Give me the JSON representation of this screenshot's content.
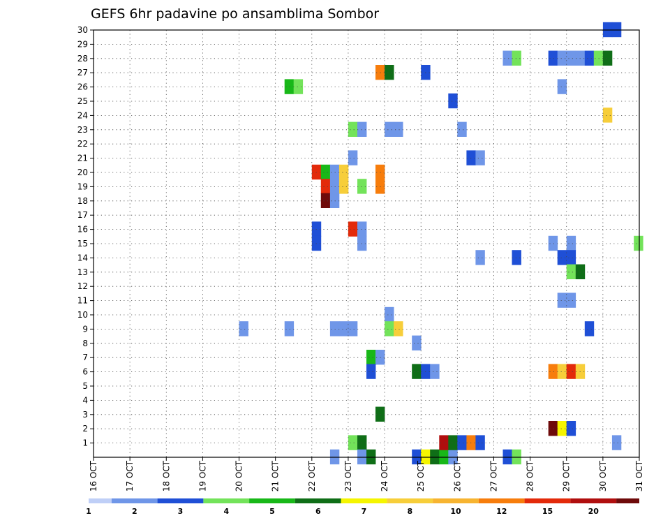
{
  "chart_data": {
    "type": "heatmap",
    "title": "GEFS 6hr padavine po ansamblima Sombor",
    "xlabel": "",
    "ylabel": "",
    "x_tick_labels": [
      "16 OCT",
      "17 OCT",
      "18 OCT",
      "19 OCT",
      "20 OCT",
      "21 OCT",
      "22 OCT",
      "23 OCT",
      "24 OCT",
      "25 OCT",
      "26 OCT",
      "27 OCT",
      "28 OCT",
      "29 OCT",
      "30 OCT",
      "31 OCT"
    ],
    "xlim_days": [
      16,
      31
    ],
    "y_tick_labels": [
      "1",
      "2",
      "3",
      "4",
      "5",
      "6",
      "7",
      "8",
      "9",
      "10",
      "11",
      "12",
      "13",
      "14",
      "15",
      "16",
      "17",
      "18",
      "19",
      "20",
      "21",
      "22",
      "23",
      "24",
      "25",
      "26",
      "27",
      "28",
      "29",
      "30"
    ],
    "ylim": [
      0,
      30
    ],
    "grid": true,
    "colorbar": {
      "labels": [
        "1",
        "2",
        "3",
        "4",
        "5",
        "6",
        "7",
        "8",
        "10",
        "12",
        "15",
        "20"
      ],
      "colors": [
        "#bfcff7",
        "#6f96e8",
        "#1f4fd6",
        "#73e35a",
        "#18b818",
        "#0f6e17",
        "#f5f500",
        "#f7ce3a",
        "#f7b431",
        "#f77d0c",
        "#e32a0a",
        "#b00e0e",
        "#6e0a0a"
      ]
    },
    "cells": [
      {
        "x": 20.0,
        "y": 9,
        "c": 1
      },
      {
        "x": 21.25,
        "y": 9,
        "c": 1
      },
      {
        "x": 21.25,
        "y": 26,
        "c": 4
      },
      {
        "x": 21.5,
        "y": 26,
        "c": 3
      },
      {
        "x": 22.0,
        "y": 20,
        "c": 10
      },
      {
        "x": 22.25,
        "y": 20,
        "c": 4
      },
      {
        "x": 22.5,
        "y": 20,
        "c": 1
      },
      {
        "x": 22.75,
        "y": 20,
        "c": 7
      },
      {
        "x": 22.25,
        "y": 19,
        "c": 10
      },
      {
        "x": 22.5,
        "y": 19,
        "c": 1
      },
      {
        "x": 22.75,
        "y": 19,
        "c": 7
      },
      {
        "x": 22.25,
        "y": 18,
        "c": 12
      },
      {
        "x": 22.5,
        "y": 18,
        "c": 1
      },
      {
        "x": 22.0,
        "y": 16,
        "c": 2
      },
      {
        "x": 22.0,
        "y": 15,
        "c": 2
      },
      {
        "x": 22.5,
        "y": 9,
        "c": 1
      },
      {
        "x": 22.75,
        "y": 9,
        "c": 1
      },
      {
        "x": 23.0,
        "y": 9,
        "c": 1
      },
      {
        "x": 22.5,
        "y": 0,
        "c": 1
      },
      {
        "x": 23.0,
        "y": 23,
        "c": 3
      },
      {
        "x": 23.25,
        "y": 23,
        "c": 1
      },
      {
        "x": 23.0,
        "y": 21,
        "c": 1
      },
      {
        "x": 23.25,
        "y": 19,
        "c": 3
      },
      {
        "x": 23.0,
        "y": 16,
        "c": 10
      },
      {
        "x": 23.25,
        "y": 16,
        "c": 1
      },
      {
        "x": 23.25,
        "y": 15,
        "c": 1
      },
      {
        "x": 23.5,
        "y": 7,
        "c": 4
      },
      {
        "x": 23.75,
        "y": 7,
        "c": 1
      },
      {
        "x": 23.5,
        "y": 6,
        "c": 2
      },
      {
        "x": 23.75,
        "y": 3,
        "c": 5
      },
      {
        "x": 23.0,
        "y": 1,
        "c": 3
      },
      {
        "x": 23.25,
        "y": 1,
        "c": 5
      },
      {
        "x": 23.25,
        "y": 0,
        "c": 1
      },
      {
        "x": 23.5,
        "y": 0,
        "c": 5
      },
      {
        "x": 23.75,
        "y": 27,
        "c": 9
      },
      {
        "x": 24.0,
        "y": 27,
        "c": 5
      },
      {
        "x": 24.0,
        "y": 23,
        "c": 1
      },
      {
        "x": 24.25,
        "y": 23,
        "c": 1
      },
      {
        "x": 23.75,
        "y": 20,
        "c": 9
      },
      {
        "x": 23.75,
        "y": 19,
        "c": 9
      },
      {
        "x": 24.0,
        "y": 10,
        "c": 1
      },
      {
        "x": 24.0,
        "y": 9,
        "c": 3
      },
      {
        "x": 24.25,
        "y": 9,
        "c": 7
      },
      {
        "x": 24.75,
        "y": 0,
        "c": 2
      },
      {
        "x": 24.75,
        "y": 8,
        "c": 1
      },
      {
        "x": 24.75,
        "y": 6,
        "c": 5
      },
      {
        "x": 25.0,
        "y": 6,
        "c": 2
      },
      {
        "x": 25.25,
        "y": 6,
        "c": 1
      },
      {
        "x": 25.0,
        "y": 27,
        "c": 2
      },
      {
        "x": 25.0,
        "y": 0,
        "c": 6
      },
      {
        "x": 25.25,
        "y": 0,
        "c": 5
      },
      {
        "x": 25.5,
        "y": 0,
        "c": 4
      },
      {
        "x": 25.75,
        "y": 0,
        "c": 1
      },
      {
        "x": 25.5,
        "y": 1,
        "c": 11
      },
      {
        "x": 25.75,
        "y": 1,
        "c": 5
      },
      {
        "x": 26.0,
        "y": 1,
        "c": 2
      },
      {
        "x": 26.25,
        "y": 1,
        "c": 9
      },
      {
        "x": 26.5,
        "y": 1,
        "c": 2
      },
      {
        "x": 25.75,
        "y": 25,
        "c": 2
      },
      {
        "x": 26.0,
        "y": 23,
        "c": 1
      },
      {
        "x": 26.25,
        "y": 21,
        "c": 2
      },
      {
        "x": 26.5,
        "y": 21,
        "c": 1
      },
      {
        "x": 26.5,
        "y": 14,
        "c": 1
      },
      {
        "x": 27.25,
        "y": 28,
        "c": 1
      },
      {
        "x": 27.5,
        "y": 28,
        "c": 3
      },
      {
        "x": 27.5,
        "y": 14,
        "c": 2
      },
      {
        "x": 27.25,
        "y": 0,
        "c": 2
      },
      {
        "x": 27.5,
        "y": 0,
        "c": 3
      },
      {
        "x": 28.5,
        "y": 28,
        "c": 2
      },
      {
        "x": 28.75,
        "y": 28,
        "c": 1
      },
      {
        "x": 29.0,
        "y": 28,
        "c": 1
      },
      {
        "x": 29.25,
        "y": 28,
        "c": 1
      },
      {
        "x": 29.5,
        "y": 28,
        "c": 2
      },
      {
        "x": 29.75,
        "y": 28,
        "c": 3
      },
      {
        "x": 30.0,
        "y": 28,
        "c": 5
      },
      {
        "x": 30.0,
        "y": 30,
        "c": 2
      },
      {
        "x": 30.25,
        "y": 30,
        "c": 2
      },
      {
        "x": 28.75,
        "y": 26,
        "c": 1
      },
      {
        "x": 30.0,
        "y": 24,
        "c": 7
      },
      {
        "x": 28.5,
        "y": 15,
        "c": 1
      },
      {
        "x": 29.0,
        "y": 15,
        "c": 1
      },
      {
        "x": 28.75,
        "y": 14,
        "c": 2
      },
      {
        "x": 29.0,
        "y": 14,
        "c": 2
      },
      {
        "x": 29.0,
        "y": 13,
        "c": 3
      },
      {
        "x": 29.25,
        "y": 13,
        "c": 5
      },
      {
        "x": 28.75,
        "y": 11,
        "c": 1
      },
      {
        "x": 29.0,
        "y": 11,
        "c": 1
      },
      {
        "x": 29.5,
        "y": 9,
        "c": 2
      },
      {
        "x": 28.5,
        "y": 6,
        "c": 9
      },
      {
        "x": 28.75,
        "y": 6,
        "c": 7
      },
      {
        "x": 29.0,
        "y": 6,
        "c": 10
      },
      {
        "x": 29.25,
        "y": 6,
        "c": 7
      },
      {
        "x": 28.5,
        "y": 2,
        "c": 12
      },
      {
        "x": 28.75,
        "y": 2,
        "c": 6
      },
      {
        "x": 29.0,
        "y": 2,
        "c": 2
      },
      {
        "x": 30.25,
        "y": 1,
        "c": 1
      },
      {
        "x": 30.85,
        "y": 15,
        "c": 3
      }
    ]
  }
}
